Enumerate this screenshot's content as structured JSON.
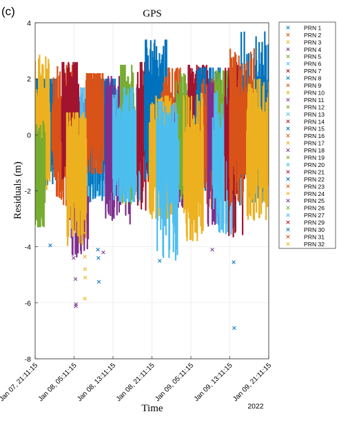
{
  "panel_label": "(c)",
  "chart_data": {
    "type": "scatter",
    "title": "GPS",
    "xlabel": "Time",
    "ylabel": "Residuals (m)",
    "year_label": "2022",
    "ylim": [
      -8,
      4
    ],
    "yticks": [
      4,
      2,
      0,
      -2,
      -4,
      -6,
      -8
    ],
    "xlim_hours": [
      0,
      48
    ],
    "xticks": [
      {
        "hour": 0,
        "label": "Jan 07, 21:11:15"
      },
      {
        "hour": 8,
        "label": "Jan 08, 05:11:15"
      },
      {
        "hour": 16,
        "label": "Jan 08, 13:11:15"
      },
      {
        "hour": 24,
        "label": "Jan 08, 21:11:15"
      },
      {
        "hour": 32,
        "label": "Jan 09, 05:11:15"
      },
      {
        "hour": 40,
        "label": "Jan 09, 13:11:15"
      },
      {
        "hour": 48,
        "label": "Jan 09, 21:11:15"
      }
    ],
    "grid": true,
    "marker": "x",
    "legend_position": "outside-right",
    "series": [
      {
        "name": "PRN 1",
        "color": "#0072BD"
      },
      {
        "name": "PRN 2",
        "color": "#D95319"
      },
      {
        "name": "PRN 3",
        "color": "#EDB120"
      },
      {
        "name": "PRN 4",
        "color": "#7E2F8E"
      },
      {
        "name": "PRN 5",
        "color": "#77AC30"
      },
      {
        "name": "PRN 6",
        "color": "#4DBEEE"
      },
      {
        "name": "PRN 7",
        "color": "#A2142F"
      },
      {
        "name": "PRN 8",
        "color": "#0072BD"
      },
      {
        "name": "PRN 9",
        "color": "#D95319"
      },
      {
        "name": "PRN 10",
        "color": "#EDB120"
      },
      {
        "name": "PRN 11",
        "color": "#7E2F8E"
      },
      {
        "name": "PRN 12",
        "color": "#77AC30"
      },
      {
        "name": "PRN 13",
        "color": "#4DBEEE"
      },
      {
        "name": "PRN 14",
        "color": "#A2142F"
      },
      {
        "name": "PRN 15",
        "color": "#0072BD"
      },
      {
        "name": "PRN 16",
        "color": "#D95319"
      },
      {
        "name": "PRN 17",
        "color": "#EDB120"
      },
      {
        "name": "PRN 18",
        "color": "#7E2F8E"
      },
      {
        "name": "PRN 19",
        "color": "#77AC30"
      },
      {
        "name": "PRN 20",
        "color": "#4DBEEE"
      },
      {
        "name": "PRN 21",
        "color": "#A2142F"
      },
      {
        "name": "PRN 22",
        "color": "#0072BD"
      },
      {
        "name": "PRN 23",
        "color": "#D95319"
      },
      {
        "name": "PRN 24",
        "color": "#EDB120"
      },
      {
        "name": "PRN 25",
        "color": "#7E2F8E"
      },
      {
        "name": "PRN 26",
        "color": "#77AC30"
      },
      {
        "name": "PRN 27",
        "color": "#4DBEEE"
      },
      {
        "name": "PRN 29",
        "color": "#A2142F"
      },
      {
        "name": "PRN 30",
        "color": "#0072BD"
      },
      {
        "name": "PRN 31",
        "color": "#D95319"
      },
      {
        "name": "PRN 32",
        "color": "#EDB120"
      }
    ],
    "data_bands": [
      {
        "series": "PRN 1",
        "x0": 0.0,
        "x1": 4.5,
        "ymin": -1.8,
        "ymax": 2.0,
        "base": 0.4
      },
      {
        "series": "PRN 2",
        "x0": 3.5,
        "x1": 8.0,
        "ymin": -2.6,
        "ymax": 2.5,
        "base": 0.1
      },
      {
        "series": "PRN 3",
        "x0": 0.0,
        "x1": 3.0,
        "ymin": -2.0,
        "ymax": 3.0,
        "base": 0.2
      },
      {
        "series": "PRN 4",
        "x0": 7.0,
        "x1": 11.0,
        "ymin": -4.5,
        "ymax": 1.5,
        "base": -1.5
      },
      {
        "series": "PRN 5",
        "x0": 0.0,
        "x1": 2.0,
        "ymin": -3.3,
        "ymax": 0.5,
        "base": -1.5
      },
      {
        "series": "PRN 6",
        "x0": 8.5,
        "x1": 14.5,
        "ymin": -2.2,
        "ymax": 1.7,
        "base": -0.3
      },
      {
        "series": "PRN 7",
        "x0": 5.5,
        "x1": 9.0,
        "ymin": -1.8,
        "ymax": 2.6,
        "base": 0.6
      },
      {
        "series": "PRN 8",
        "x0": 11.0,
        "x1": 16.5,
        "ymin": -2.4,
        "ymax": 2.0,
        "base": 0.5
      },
      {
        "series": "PRN 9",
        "x0": 10.5,
        "x1": 14.0,
        "ymin": -1.4,
        "ymax": 2.2,
        "base": 0.7
      },
      {
        "series": "PRN 10",
        "x0": 6.5,
        "x1": 10.5,
        "ymin": -4.0,
        "ymax": 0.8,
        "base": -1.2
      },
      {
        "series": "PRN 11",
        "x0": 14.5,
        "x1": 19.5,
        "ymin": -3.2,
        "ymax": 2.1,
        "base": -0.4
      },
      {
        "series": "PRN 12",
        "x0": 17.5,
        "x1": 20.5,
        "ymin": -2.5,
        "ymax": 2.5,
        "base": 0.3
      },
      {
        "series": "PRN 13",
        "x0": 16.0,
        "x1": 22.0,
        "ymin": -2.4,
        "ymax": 1.7,
        "base": -0.5
      },
      {
        "series": "PRN 14",
        "x0": 21.0,
        "x1": 25.0,
        "ymin": -2.9,
        "ymax": 2.6,
        "base": 0.2
      },
      {
        "series": "PRN 15",
        "x0": 22.5,
        "x1": 27.0,
        "ymin": -1.6,
        "ymax": 3.4,
        "base": 0.8
      },
      {
        "series": "PRN 16",
        "x0": 26.0,
        "x1": 30.0,
        "ymin": -2.2,
        "ymax": 2.4,
        "base": 0.1
      },
      {
        "series": "PRN 17",
        "x0": 23.5,
        "x1": 28.5,
        "ymin": -3.0,
        "ymax": 1.4,
        "base": -0.8
      },
      {
        "series": "PRN 18",
        "x0": 28.5,
        "x1": 32.5,
        "ymin": -2.6,
        "ymax": 1.6,
        "base": -0.6
      },
      {
        "series": "PRN 19",
        "x0": 29.0,
        "x1": 31.5,
        "ymin": -2.3,
        "ymax": 2.2,
        "base": 0.0
      },
      {
        "series": "PRN 20",
        "x0": 25.0,
        "x1": 29.5,
        "ymin": -4.5,
        "ymax": 1.2,
        "base": -1.0
      },
      {
        "series": "PRN 21",
        "x0": 31.5,
        "x1": 35.5,
        "ymin": -1.9,
        "ymax": 2.5,
        "base": 0.6
      },
      {
        "series": "PRN 22",
        "x0": 33.0,
        "x1": 38.0,
        "ymin": -2.0,
        "ymax": 2.4,
        "base": 0.5
      },
      {
        "series": "PRN 23",
        "x0": 34.0,
        "x1": 37.5,
        "ymin": -2.7,
        "ymax": 2.0,
        "base": -0.1
      },
      {
        "series": "PRN 24",
        "x0": 30.5,
        "x1": 34.5,
        "ymin": -3.8,
        "ymax": 1.5,
        "base": -1.2
      },
      {
        "series": "PRN 25",
        "x0": 35.5,
        "x1": 39.5,
        "ymin": -3.3,
        "ymax": 1.9,
        "base": -0.5
      },
      {
        "series": "PRN 26",
        "x0": 37.0,
        "x1": 40.0,
        "ymin": -2.1,
        "ymax": 2.3,
        "base": 0.3
      },
      {
        "series": "PRN 27",
        "x0": 36.5,
        "x1": 41.0,
        "ymin": -3.6,
        "ymax": 1.8,
        "base": -0.9
      },
      {
        "series": "PRN 29",
        "x0": 39.0,
        "x1": 43.0,
        "ymin": -3.7,
        "ymax": 2.6,
        "base": 0.1
      },
      {
        "series": "PRN 30",
        "x0": 42.0,
        "x1": 48.0,
        "ymin": -2.6,
        "ymax": 3.7,
        "base": 0.6
      },
      {
        "series": "PRN 31",
        "x0": 40.0,
        "x1": 45.0,
        "ymin": -2.6,
        "ymax": 3.1,
        "base": 0.3
      },
      {
        "series": "PRN 32",
        "x0": 43.5,
        "x1": 48.0,
        "ymin": -3.1,
        "ymax": 2.0,
        "base": -0.4
      }
    ],
    "outliers": [
      {
        "series": "PRN 4",
        "x": 8.3,
        "y": -5.15
      },
      {
        "series": "PRN 4",
        "x": 8.4,
        "y": -6.05
      },
      {
        "series": "PRN 4",
        "x": 8.35,
        "y": -6.12
      },
      {
        "series": "PRN 4",
        "x": 7.9,
        "y": -4.4
      },
      {
        "series": "PRN 3",
        "x": 10.2,
        "y": -4.35
      },
      {
        "series": "PRN 3",
        "x": 10.25,
        "y": -4.8
      },
      {
        "series": "PRN 3",
        "x": 10.3,
        "y": -5.1
      },
      {
        "series": "PRN 3",
        "x": 10.2,
        "y": -5.85
      },
      {
        "series": "PRN 3",
        "x": 10.1,
        "y": -3.5
      },
      {
        "series": "PRN 1",
        "x": 12.9,
        "y": -4.1
      },
      {
        "series": "PRN 1",
        "x": 13.0,
        "y": -4.4
      },
      {
        "series": "PRN 1",
        "x": 13.1,
        "y": -5.25
      },
      {
        "series": "PRN 4",
        "x": 14.0,
        "y": -4.2
      },
      {
        "series": "PRN 1",
        "x": 40.9,
        "y": -6.9
      },
      {
        "series": "PRN 1",
        "x": 3.1,
        "y": -3.95
      },
      {
        "series": "PRN 1",
        "x": 25.6,
        "y": -4.5
      },
      {
        "series": "PRN 1",
        "x": 40.8,
        "y": -4.55
      },
      {
        "series": "PRN 4",
        "x": 36.4,
        "y": -4.1
      }
    ]
  }
}
